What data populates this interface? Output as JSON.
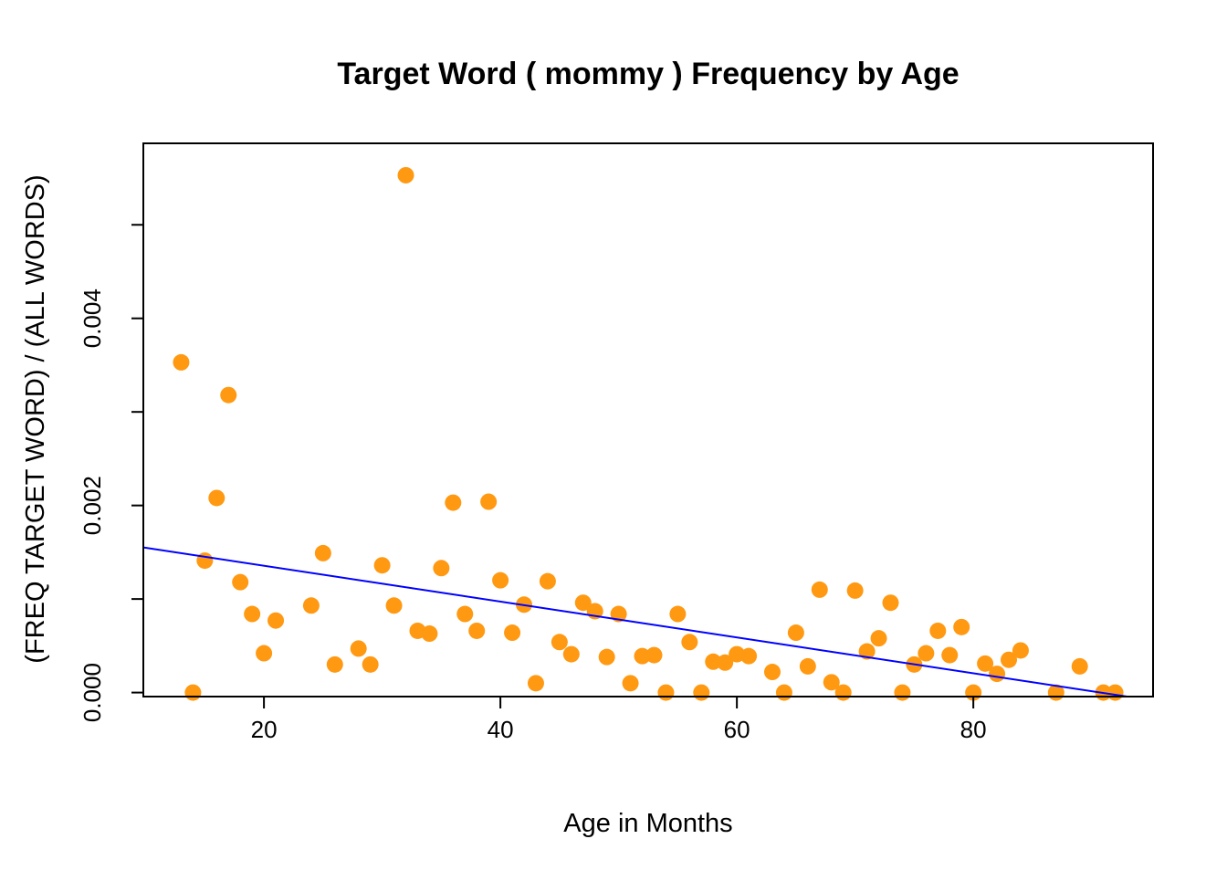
{
  "chart_data": {
    "type": "scatter",
    "title": "Target Word ( mommy ) Frequency by Age",
    "xlabel": "Age in Months",
    "ylabel": "(FREQ TARGET WORD) / (ALL WORDS)",
    "xlim": [
      9.8,
      95.2
    ],
    "ylim": [
      -4.3e-05,
      0.005871
    ],
    "x_ticks": [
      20,
      40,
      60,
      80
    ],
    "x_tick_labels": [
      "20",
      "40",
      "60",
      "80"
    ],
    "y_ticks": [
      0.0,
      0.001,
      0.002,
      0.003,
      0.004,
      0.005
    ],
    "y_tick_labels": [
      "0.000",
      "",
      "0.002",
      "",
      "0.004",
      ""
    ],
    "grid": false,
    "legend": "none",
    "point_color": "#FF9912",
    "line_color": "#0000FF",
    "series": [
      {
        "kind": "points",
        "x": [
          13,
          14,
          15,
          16,
          17,
          18,
          19,
          20,
          21,
          24,
          25,
          26,
          28,
          29,
          30,
          31,
          32,
          33,
          34,
          35,
          36,
          37,
          38,
          39,
          40,
          41,
          42,
          43,
          44,
          45,
          46,
          47,
          48,
          49,
          50,
          51,
          52,
          53,
          54,
          55,
          56,
          57,
          58,
          59,
          60,
          61,
          63,
          64,
          65,
          66,
          67,
          68,
          69,
          70,
          71,
          72,
          73,
          74,
          75,
          76,
          77,
          78,
          79,
          80,
          81,
          82,
          83,
          84,
          87,
          89,
          91,
          92
        ],
        "y": [
          0.00353,
          0.0,
          0.00141,
          0.00208,
          0.00318,
          0.00118,
          0.00084,
          0.00042,
          0.00077,
          0.00093,
          0.00149,
          0.0003,
          0.00047,
          0.0003,
          0.00136,
          0.00093,
          0.00553,
          0.00066,
          0.00063,
          0.00133,
          0.00203,
          0.00084,
          0.00066,
          0.00204,
          0.0012,
          0.00064,
          0.00094,
          0.0001,
          0.00119,
          0.00054,
          0.00041,
          0.00096,
          0.00087,
          0.00038,
          0.00084,
          0.0001,
          0.00039,
          0.0004,
          0.0,
          0.00084,
          0.00054,
          0.0,
          0.00033,
          0.00032,
          0.00041,
          0.00039,
          0.00022,
          0.0,
          0.00064,
          0.00028,
          0.0011,
          0.00011,
          0.0,
          0.00109,
          0.00044,
          0.00058,
          0.00096,
          0.0,
          0.0003,
          0.00042,
          0.00066,
          0.0004,
          0.0007,
          0.0,
          0.00031,
          0.0002,
          0.00035,
          0.00045,
          0.0,
          0.00028,
          0.0,
          0.0
        ]
      },
      {
        "kind": "regression-line",
        "x": [
          9.8,
          95.2
        ],
        "y": [
          0.001551,
          -8.5e-05
        ]
      }
    ]
  }
}
